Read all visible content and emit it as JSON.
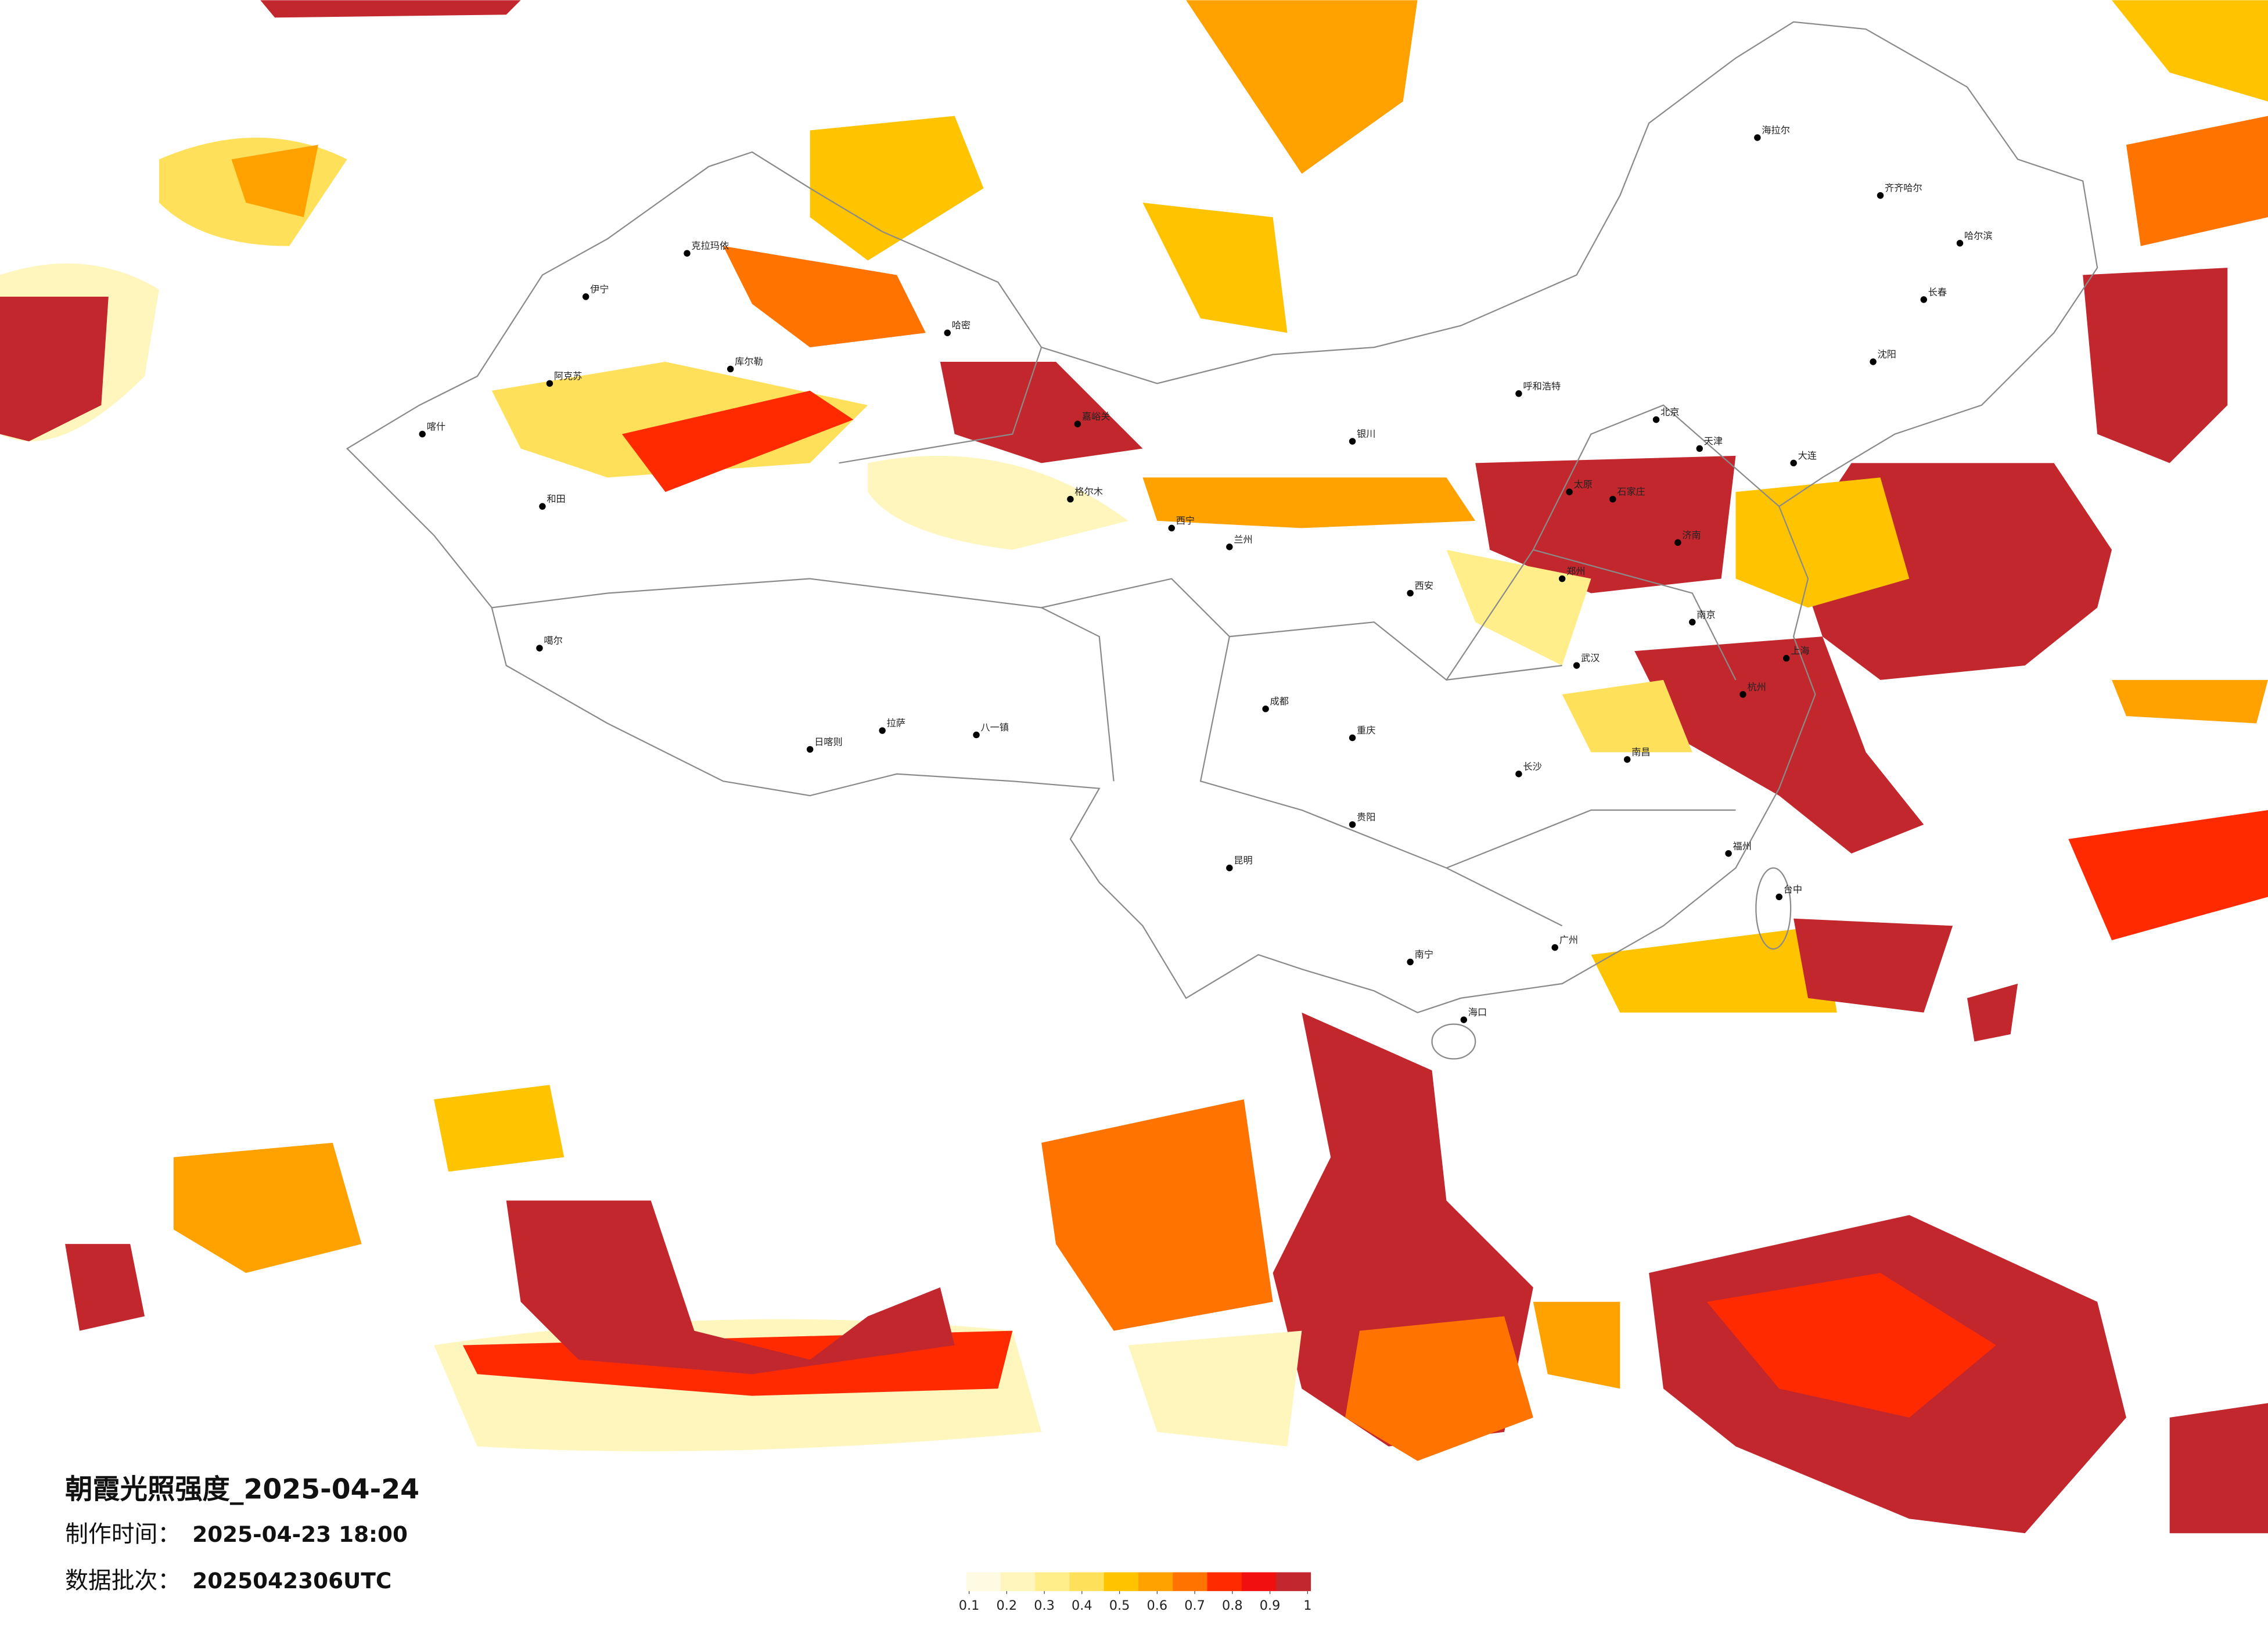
{
  "title": "朝霞光照强度_2025-04-24",
  "make_time": {
    "label": "制作时间：",
    "value": "2025-04-23 18:00"
  },
  "data_batch": {
    "label": "数据批次：",
    "value": "2025042306UTC"
  },
  "legend": {
    "colors": [
      "#fffbe3",
      "#fff6bd",
      "#ffee8a",
      "#ffe05a",
      "#ffc300",
      "#ffa200",
      "#ff7300",
      "#ff2a00",
      "#f20f0f",
      "#c1272d"
    ],
    "ticks": [
      0.1,
      0.2,
      0.3,
      0.4,
      0.5,
      0.6,
      0.7,
      0.8,
      0.9,
      1
    ]
  },
  "cities": [
    "伊宁",
    "阿克苏",
    "喀什",
    "和田",
    "库尔勒",
    "克拉玛依",
    "哈密",
    "嘉峪关",
    "格尔木",
    "拉萨",
    "日喀则",
    "八一镇",
    "噶尔",
    "西宁",
    "兰州",
    "海拉尔",
    "齐齐哈尔",
    "哈尔滨",
    "长春",
    "沈阳",
    "北京",
    "天津",
    "呼和浩特",
    "银川",
    "太原",
    "郑州",
    "武汉",
    "南京",
    "上海",
    "杭州",
    "长沙",
    "南昌",
    "福州",
    "台中",
    "广州",
    "南宁",
    "昆明",
    "贵阳",
    "成都",
    "重庆",
    "西安",
    "海口",
    "济南",
    "石家庄",
    "大连"
  ]
}
